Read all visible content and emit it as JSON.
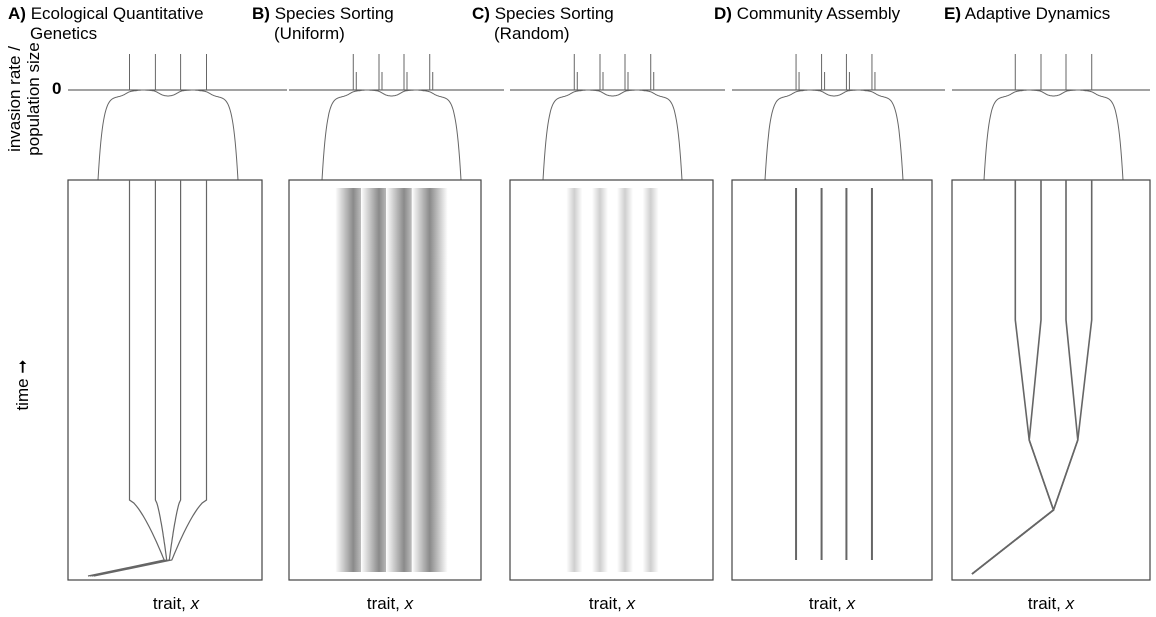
{
  "labels": {
    "y_top_line1": "invasion rate /",
    "y_top_line2": "population size",
    "y_top_zero": "0",
    "y_bottom": "time ➞"
  },
  "panels": [
    {
      "letter": "A)",
      "title": "Ecological Quantitative",
      "subtitle": "Genetics",
      "xlabel_text": "trait, ",
      "xlabel_var": "x"
    },
    {
      "letter": "B)",
      "title": "Species Sorting",
      "subtitle": "(Uniform)",
      "xlabel_text": "trait, ",
      "xlabel_var": "x"
    },
    {
      "letter": "C)",
      "title": "Species Sorting",
      "subtitle": "(Random)",
      "xlabel_text": "trait, ",
      "xlabel_var": "x"
    },
    {
      "letter": "D)",
      "title": "Community Assembly",
      "subtitle": "",
      "xlabel_text": "trait, ",
      "xlabel_var": "x"
    },
    {
      "letter": "E)",
      "title": "Adaptive Dynamics",
      "subtitle": "",
      "xlabel_text": "trait, ",
      "xlabel_var": "x"
    }
  ],
  "colors": {
    "line": "#666666",
    "frame": "#444444",
    "gradient_dark": "#8a8a8a"
  },
  "chart_data": {
    "type": "line",
    "top_panel": {
      "y_zero": 0,
      "invasion_rate_curve": "flat near zero between traits, dipping below between the four spikes, falling steeply at both edges",
      "species_traits": [
        -0.55,
        -0.18,
        0.18,
        0.55
      ]
    },
    "bottom_panel": {
      "x_axis": "trait, x",
      "y_axis": "time",
      "final_traits": [
        -0.55,
        -0.18,
        0.18,
        0.55
      ]
    }
  }
}
